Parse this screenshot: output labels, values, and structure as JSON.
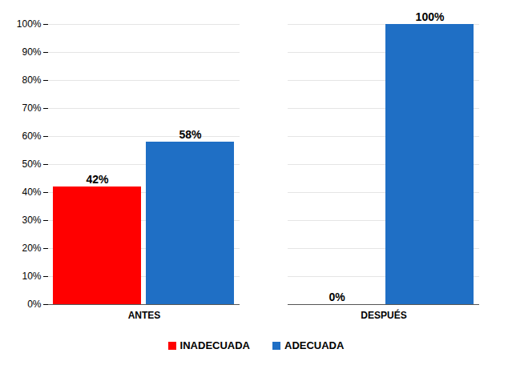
{
  "chart_data": {
    "type": "bar",
    "categories": [
      "ANTES",
      "DESPUÉS"
    ],
    "series": [
      {
        "name": "INADECUADA",
        "color": "#ff0000",
        "values": [
          42,
          0
        ],
        "value_labels": [
          "42%",
          "0%"
        ]
      },
      {
        "name": "ADECUADA",
        "color": "#1f6fc5",
        "values": [
          58,
          100
        ],
        "value_labels": [
          "58%",
          "100%"
        ]
      }
    ],
    "ylim": [
      0,
      100
    ],
    "yticks": [
      {
        "value": 0,
        "label": "0%"
      },
      {
        "value": 10,
        "label": "10%"
      },
      {
        "value": 20,
        "label": "20%"
      },
      {
        "value": 30,
        "label": "30%"
      },
      {
        "value": 40,
        "label": "40%"
      },
      {
        "value": 50,
        "label": "50%"
      },
      {
        "value": 60,
        "label": "60%"
      },
      {
        "value": 70,
        "label": "70%"
      },
      {
        "value": 80,
        "label": "80%"
      },
      {
        "value": 90,
        "label": "90%"
      },
      {
        "value": 100,
        "label": "100%"
      }
    ],
    "grid": true,
    "legend": "bottom",
    "data_labels": true
  }
}
